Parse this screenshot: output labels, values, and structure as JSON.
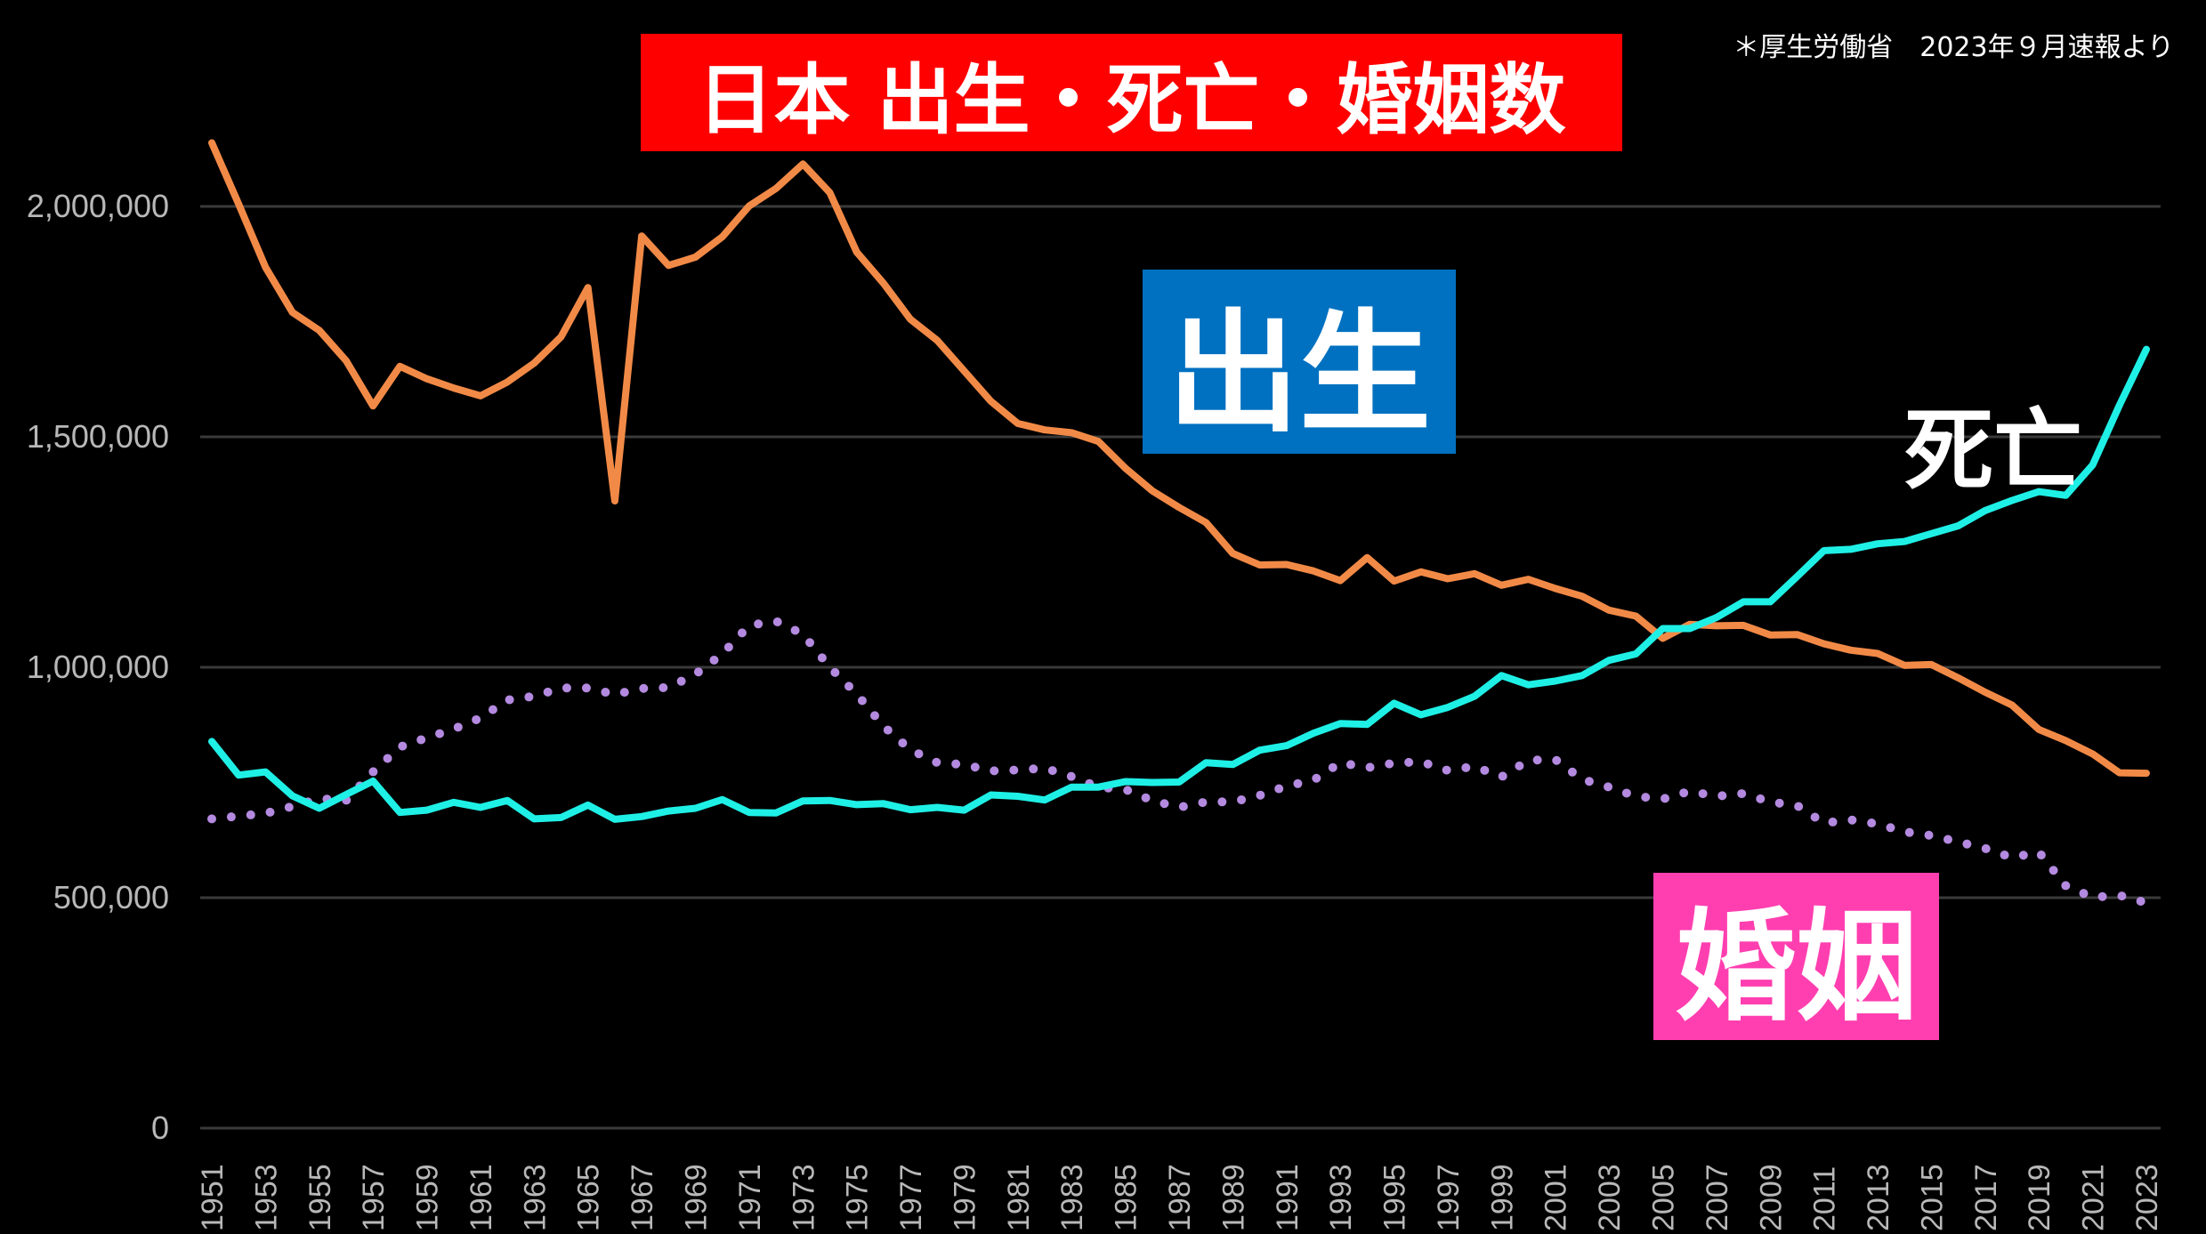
{
  "title": "日本 出生・死亡・婚姻数",
  "source_note": "＊厚生労働省　2023年９月速報より",
  "labels": {
    "birth": "出生",
    "death": "死亡",
    "marriage": "婚姻"
  },
  "colors": {
    "birth": "#f28a47",
    "death": "#1ff0e6",
    "marriage": "#b48ae0",
    "title_bg": "#ff0000",
    "birth_label_bg": "#0071c1",
    "marriage_label_bg": "#ff3fb0",
    "background": "#000000"
  },
  "chart_data": {
    "type": "line",
    "title": "日本 出生・死亡・婚姻数",
    "xlabel": "",
    "ylabel": "",
    "ylim": [
      0,
      2200000
    ],
    "yticks": [
      0,
      500000,
      1000000,
      1500000,
      2000000
    ],
    "ytick_labels": [
      "0",
      "500,000",
      "1,000,000",
      "1,500,000",
      "2,000,000"
    ],
    "xtick_labels": [
      "1951",
      "1953",
      "1955",
      "1957",
      "1959",
      "1961",
      "1963",
      "1965",
      "1967",
      "1969",
      "1971",
      "1973",
      "1975",
      "1977",
      "1979",
      "1981",
      "1983",
      "1985",
      "1987",
      "1989",
      "1991",
      "1993",
      "1995",
      "1997",
      "1999",
      "2001",
      "2003",
      "2005",
      "2007",
      "2009",
      "2011",
      "2013",
      "2015",
      "2017",
      "2019",
      "2021",
      "2023"
    ],
    "grid": true,
    "x": [
      1951,
      1952,
      1953,
      1954,
      1955,
      1956,
      1957,
      1958,
      1959,
      1960,
      1961,
      1962,
      1963,
      1964,
      1965,
      1966,
      1967,
      1968,
      1969,
      1970,
      1971,
      1972,
      1973,
      1974,
      1975,
      1976,
      1977,
      1978,
      1979,
      1980,
      1981,
      1982,
      1983,
      1984,
      1985,
      1986,
      1987,
      1988,
      1989,
      1990,
      1991,
      1992,
      1993,
      1994,
      1995,
      1996,
      1997,
      1998,
      1999,
      2000,
      2001,
      2002,
      2003,
      2004,
      2005,
      2006,
      2007,
      2008,
      2009,
      2010,
      2011,
      2012,
      2013,
      2014,
      2015,
      2016,
      2017,
      2018,
      2019,
      2020,
      2021,
      2022,
      2023
    ],
    "series": [
      {
        "name": "出生",
        "style": "solid",
        "values": [
          2138000,
          2005000,
          1868000,
          1770000,
          1731000,
          1665000,
          1567000,
          1653000,
          1626000,
          1606000,
          1589000,
          1619000,
          1660000,
          1717000,
          1824000,
          1361000,
          1936000,
          1872000,
          1890000,
          1934000,
          2001000,
          2039000,
          2092000,
          2030000,
          1901000,
          1833000,
          1755000,
          1709000,
          1643000,
          1577000,
          1529000,
          1515000,
          1509000,
          1490000,
          1432000,
          1383000,
          1347000,
          1314000,
          1247000,
          1222000,
          1223000,
          1209000,
          1188000,
          1238000,
          1187000,
          1207000,
          1192000,
          1203000,
          1178000,
          1191000,
          1171000,
          1154000,
          1124000,
          1111000,
          1063000,
          1093000,
          1090000,
          1091000,
          1070000,
          1071000,
          1051000,
          1037000,
          1030000,
          1004000,
          1006000,
          977000,
          946000,
          918000,
          865000,
          841000,
          812000,
          771000,
          770000
        ]
      },
      {
        "name": "死亡",
        "style": "solid",
        "values": [
          839000,
          766000,
          773000,
          721000,
          694000,
          724000,
          753000,
          685000,
          690000,
          707000,
          696000,
          711000,
          671000,
          674000,
          701000,
          670000,
          676000,
          688000,
          694000,
          713000,
          685000,
          684000,
          710000,
          711000,
          702000,
          704000,
          691000,
          696000,
          690000,
          723000,
          720000,
          712000,
          740000,
          740000,
          752000,
          750000,
          751000,
          793000,
          789000,
          820000,
          830000,
          857000,
          878000,
          876000,
          922000,
          897000,
          913000,
          937000,
          982000,
          962000,
          970000,
          982000,
          1015000,
          1029000,
          1084000,
          1084000,
          1108000,
          1142000,
          1142000,
          1197000,
          1253000,
          1256000,
          1268000,
          1273000,
          1290000,
          1307000,
          1340000,
          1362000,
          1381000,
          1373000,
          1439000,
          1569000,
          1690000
        ]
      },
      {
        "name": "婚姻",
        "style": "dotted",
        "values": [
          671000,
          677000,
          683000,
          698000,
          715000,
          711000,
          773000,
          827000,
          847000,
          866000,
          890000,
          929000,
          937000,
          955000,
          955000,
          941000,
          954000,
          956000,
          985000,
          1029000,
          1091000,
          1100000,
          1072000,
          1000000,
          942000,
          872000,
          821000,
          793000,
          789000,
          775000,
          777000,
          781000,
          763000,
          740000,
          735000,
          711000,
          696000,
          708000,
          708000,
          722000,
          742000,
          755000,
          793000,
          782000,
          792000,
          795000,
          776000,
          785000,
          762000,
          798000,
          800000,
          757000,
          740000,
          720000,
          714000,
          731000,
          720000,
          726000,
          708000,
          700000,
          662000,
          669000,
          660000,
          643000,
          635000,
          621000,
          607000,
          587000,
          599000,
          526000,
          501000,
          505000,
          489000
        ]
      }
    ]
  }
}
